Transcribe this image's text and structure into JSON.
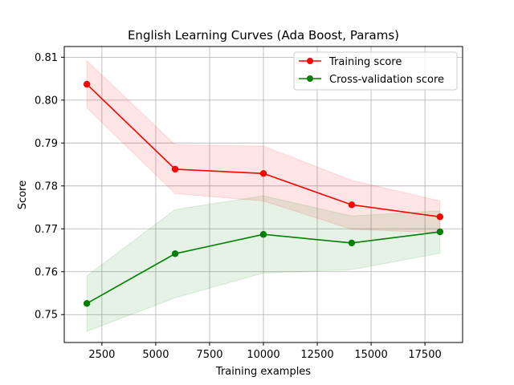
{
  "chart_data": {
    "type": "line",
    "title": "English Learning Curves (Ada Boost, Params)",
    "xlabel": "Training examples",
    "ylabel": "Score",
    "xlim": [
      750,
      19250
    ],
    "ylim": [
      0.7435,
      0.8125
    ],
    "xticks": [
      2500,
      5000,
      7500,
      10000,
      12500,
      15000,
      17500
    ],
    "yticks": [
      0.75,
      0.76,
      0.77,
      0.78,
      0.79,
      0.8,
      0.81
    ],
    "xtick_labels": [
      "2500",
      "5000",
      "7500",
      "10000",
      "12500",
      "15000",
      "17500"
    ],
    "ytick_labels": [
      "0.75",
      "0.76",
      "0.77",
      "0.78",
      "0.79",
      "0.80",
      "0.81"
    ],
    "grid": true,
    "legend_position": "top-right",
    "x": [
      1800,
      5900,
      10000,
      14100,
      18200
    ],
    "series": [
      {
        "name": "Training score",
        "color": "#ff0000",
        "band_color": "#ff0000",
        "values": [
          0.8037,
          0.7839,
          0.7829,
          0.7756,
          0.7728
        ],
        "upper": [
          0.8092,
          0.7896,
          0.7893,
          0.7813,
          0.7765
        ],
        "lower": [
          0.7982,
          0.7782,
          0.7765,
          0.7699,
          0.7691
        ]
      },
      {
        "name": "Cross-validation score",
        "color": "#008000",
        "band_color": "#008000",
        "values": [
          0.7526,
          0.7642,
          0.7687,
          0.7667,
          0.7693
        ],
        "upper": [
          0.759,
          0.7745,
          0.7777,
          0.773,
          0.7742
        ],
        "lower": [
          0.7461,
          0.7539,
          0.7597,
          0.7605,
          0.7643
        ]
      }
    ]
  }
}
